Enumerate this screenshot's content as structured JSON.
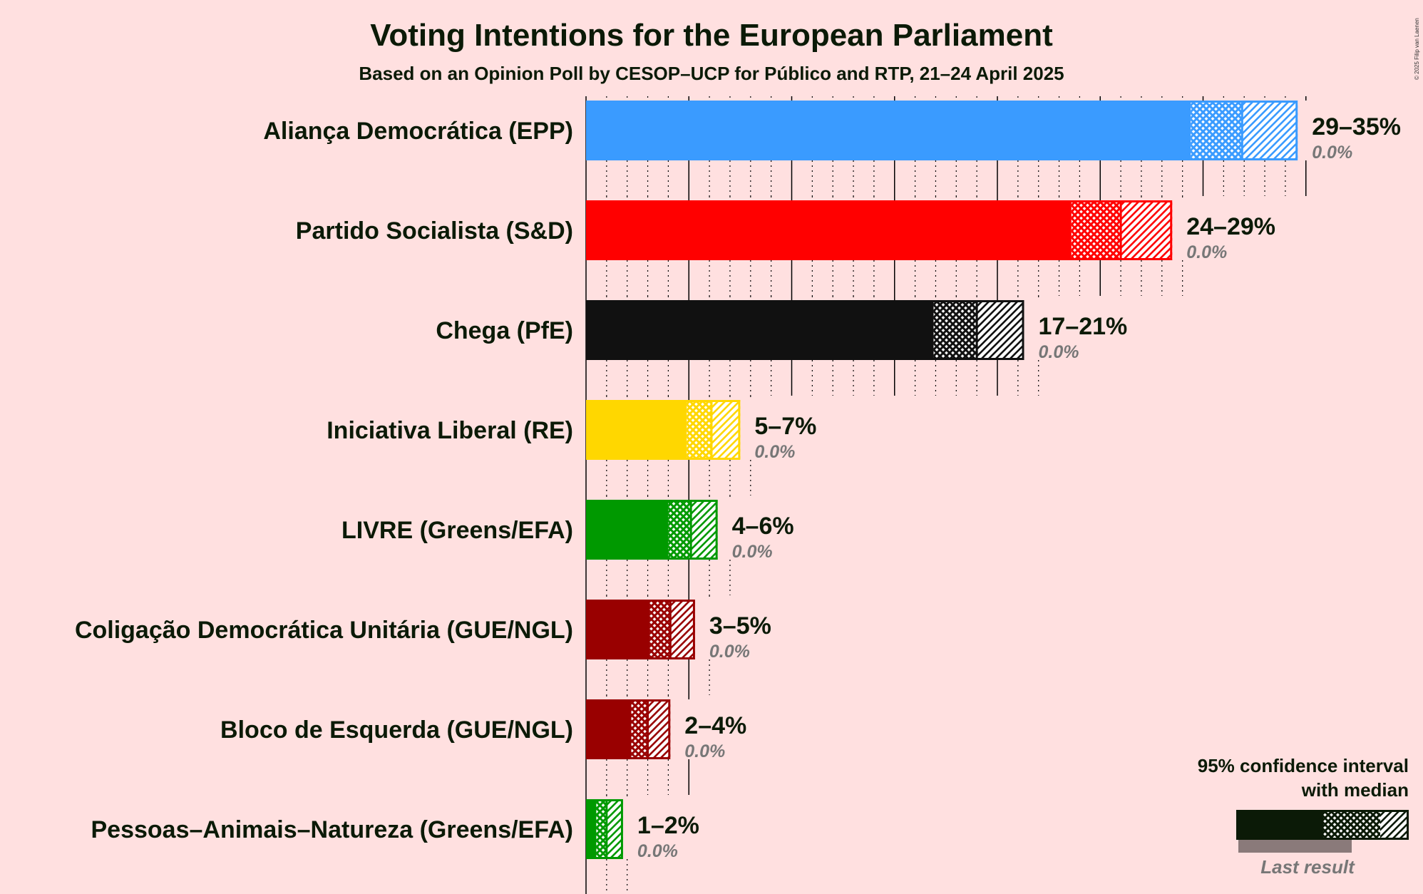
{
  "title": "Voting Intentions for the European Parliament",
  "subtitle": "Based on an Opinion Poll by CESOP–UCP for Público and RTP, 21–24 April 2025",
  "copyright": "© 2025 Filip van Laenen",
  "chart_data": {
    "type": "bar",
    "orientation": "horizontal",
    "value_unit": "%",
    "xlim": [
      0,
      35
    ],
    "grid": true,
    "legend_position": "bottom-right",
    "categories": [
      "Aliança Democrática (EPP)",
      "Partido Socialista (S&D)",
      "Chega (PfE)",
      "Iniciativa Liberal (RE)",
      "LIVRE (Greens/EFA)",
      "Coligação Democrática Unitária (GUE/NGL)",
      "Bloco de Esquerda (GUE/NGL)",
      "Pessoas–Animais–Natureza (Greens/EFA)"
    ],
    "bars": [
      {
        "party": "Aliança Democrática (EPP)",
        "color": "#3a9bff",
        "ci_low": 29.4,
        "median": 31.9,
        "ci_high": 34.6,
        "range_label": "29–35%",
        "last_result_label": "0.0%",
        "last_result": 0.0
      },
      {
        "party": "Partido Socialista (S&D)",
        "color": "#ff0000",
        "ci_low": 23.6,
        "median": 26.0,
        "ci_high": 28.5,
        "range_label": "24–29%",
        "last_result_label": "0.0%",
        "last_result": 0.0
      },
      {
        "party": "Chega (PfE)",
        "color": "#111111",
        "ci_low": 16.9,
        "median": 19.0,
        "ci_high": 21.3,
        "range_label": "17–21%",
        "last_result_label": "0.0%",
        "last_result": 0.0
      },
      {
        "party": "Iniciativa Liberal (RE)",
        "color": "#ffd700",
        "ci_low": 4.9,
        "median": 6.1,
        "ci_high": 7.5,
        "range_label": "5–7%",
        "last_result_label": "0.0%",
        "last_result": 0.0
      },
      {
        "party": "LIVRE (Greens/EFA)",
        "color": "#009900",
        "ci_low": 4.0,
        "median": 5.1,
        "ci_high": 6.4,
        "range_label": "4–6%",
        "last_result_label": "0.0%",
        "last_result": 0.0
      },
      {
        "party": "Coligação Democrática Unitária (GUE/NGL)",
        "color": "#990000",
        "ci_low": 3.1,
        "median": 4.1,
        "ci_high": 5.3,
        "range_label": "3–5%",
        "last_result_label": "0.0%",
        "last_result": 0.0
      },
      {
        "party": "Bloco de Esquerda (GUE/NGL)",
        "color": "#990000",
        "ci_low": 2.2,
        "median": 3.0,
        "ci_high": 4.1,
        "range_label": "2–4%",
        "last_result_label": "0.0%",
        "last_result": 0.0
      },
      {
        "party": "Pessoas–Animais–Natureza (Greens/EFA)",
        "color": "#009900",
        "ci_low": 0.5,
        "median": 1.0,
        "ci_high": 1.8,
        "range_label": "1–2%",
        "last_result_label": "0.0%",
        "last_result": 0.0
      }
    ],
    "legend": {
      "ci_label_line1": "95% confidence interval",
      "ci_label_line2": "with median",
      "last_result_label": "Last result",
      "color": "#0b1a07",
      "last_result_color": "#8a7a7a"
    }
  }
}
